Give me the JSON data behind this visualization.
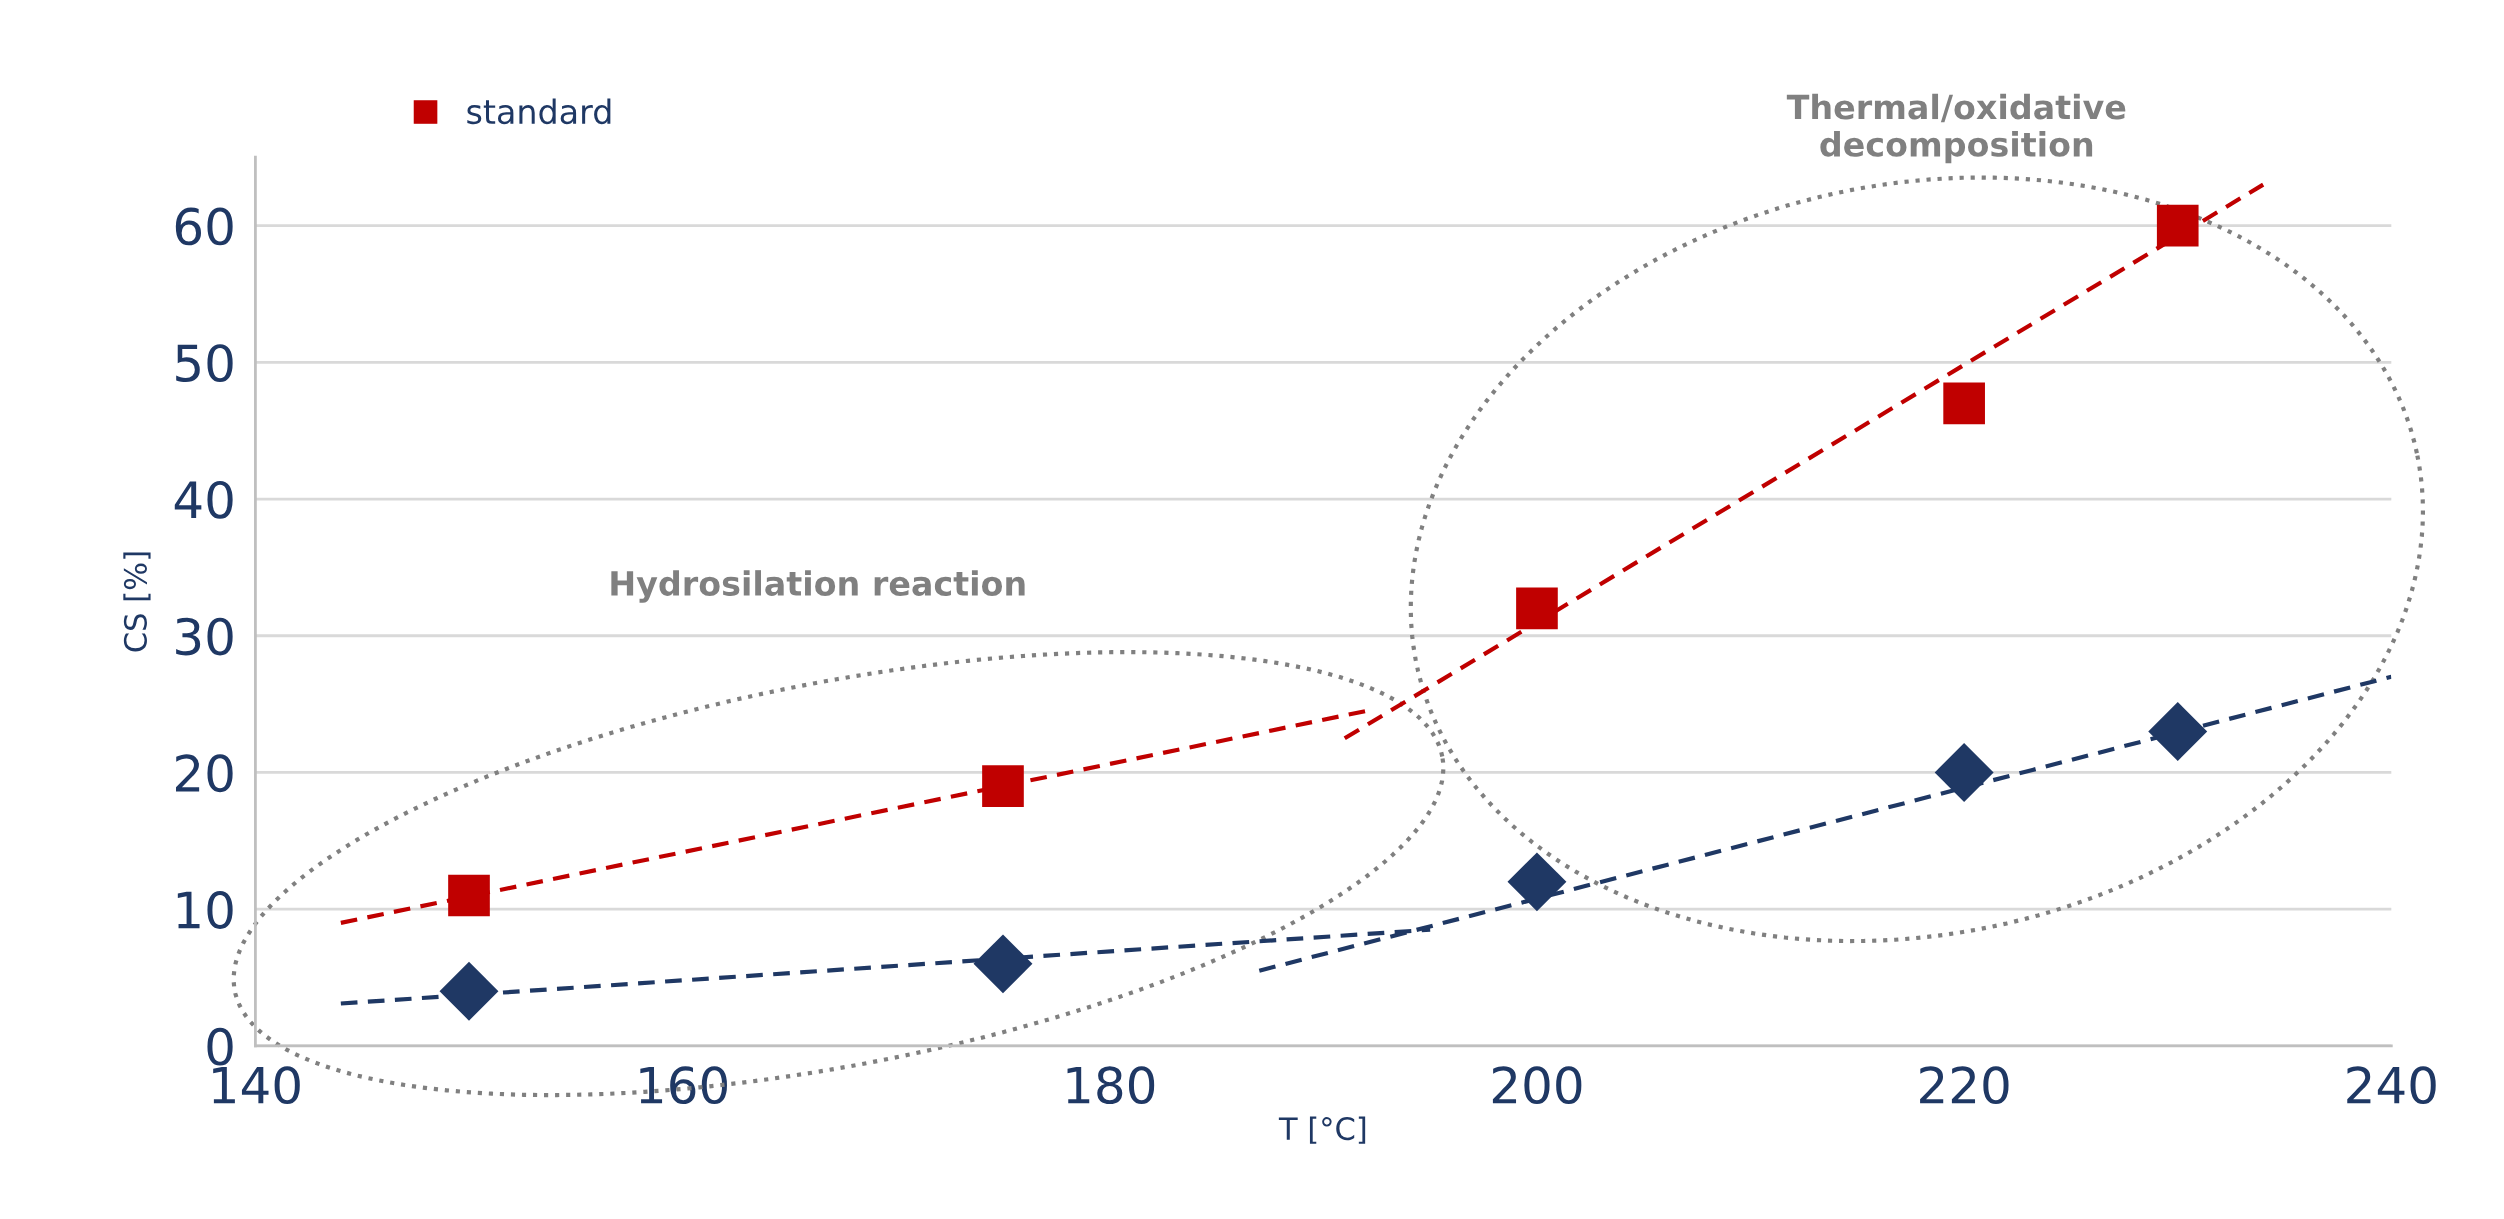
{
  "chart_data": {
    "type": "scatter",
    "xlabel": "T [°C]",
    "ylabel": "CS [%]",
    "x": [
      150,
      175,
      200,
      220,
      230
    ],
    "series": [
      {
        "color": "#1f3864",
        "marker": "diamond",
        "values": [
          4,
          6,
          12,
          20,
          23
        ]
      },
      {
        "name": "standard",
        "color": "#c00000",
        "marker": "square",
        "values": [
          11,
          19,
          32,
          47,
          60
        ]
      },
      {
        "type": "line",
        "x": [
          144,
          195
        ],
        "color": "#1f3864",
        "line_style": "dashed",
        "values": [
          3.1,
          8.5
        ]
      },
      {
        "type": "line",
        "x": [
          187,
          240
        ],
        "color": "#1f3864",
        "line_style": "dashed",
        "values": [
          5.5,
          27
        ]
      },
      {
        "type": "line",
        "x": [
          144,
          192
        ],
        "color": "#c00000",
        "line_style": "dashed",
        "values": [
          9,
          24.5
        ]
      },
      {
        "type": "line",
        "x": [
          191,
          234
        ],
        "color": "#c00000",
        "line_style": "dashed",
        "values": [
          22.5,
          63
        ]
      }
    ],
    "xlim": [
      140,
      240
    ],
    "xticks": [
      140,
      160,
      180,
      200,
      220,
      240
    ],
    "ylim": [
      0,
      65
    ],
    "yticks": [
      0,
      10,
      20,
      30,
      40,
      50,
      60
    ],
    "grid": "y",
    "legend": "top left",
    "annotations": [
      "Hydrosilation reaction",
      "Thermal/oxidative\ndecomposition"
    ]
  }
}
